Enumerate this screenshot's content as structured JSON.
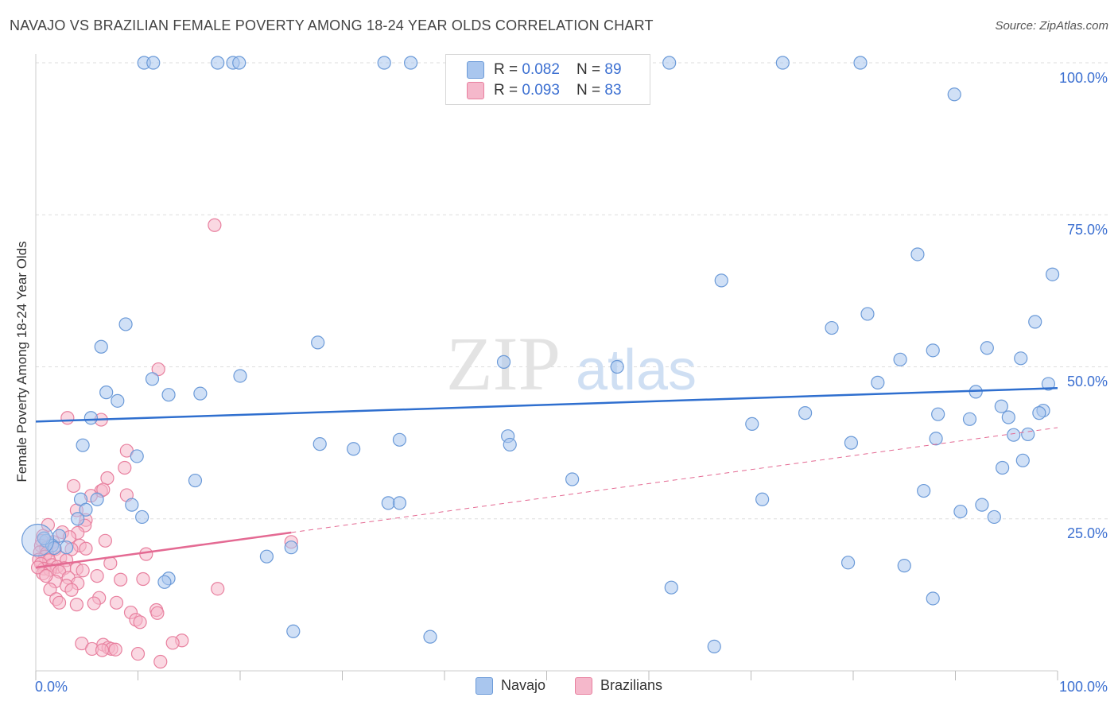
{
  "title": "NAVAJO VS BRAZILIAN FEMALE POVERTY AMONG 18-24 YEAR OLDS CORRELATION CHART",
  "source": "Source: ZipAtlas.com",
  "watermark": {
    "zip": "ZIP",
    "atlas": "atlas"
  },
  "legend": {
    "navajo": {
      "r_label": "R = ",
      "r_value": "0.082",
      "n_label": "N = ",
      "n_value": "89"
    },
    "brazilians": {
      "r_label": "R = ",
      "r_value": "0.093",
      "n_label": "N = ",
      "n_value": "83"
    }
  },
  "colors": {
    "navajo_fill": "#a9c6ee",
    "navajo_stroke": "#6b9ad8",
    "navajo_line": "#2f6fcf",
    "brazil_fill": "#f5b8cb",
    "brazil_stroke": "#e8809f",
    "brazil_line": "#e46a93",
    "grid": "#dddddd",
    "axis_text": "#3b6fd1"
  },
  "chart_data": {
    "type": "scatter",
    "title": "NAVAJO VS BRAZILIAN FEMALE POVERTY AMONG 18-24 YEAR OLDS CORRELATION CHART",
    "xlabel": "",
    "ylabel": "Female Poverty Among 18-24 Year Olds",
    "xlim": [
      0,
      100
    ],
    "ylim": [
      0,
      100
    ],
    "x_tick_labels": [
      "0.0%",
      "100.0%"
    ],
    "y_tick_labels": [
      "25.0%",
      "50.0%",
      "75.0%",
      "100.0%"
    ],
    "y_ticks": [
      25,
      50,
      75,
      100
    ],
    "grid": true,
    "legend_position": "top-center",
    "series": [
      {
        "name": "Navajo",
        "trend": {
          "x": [
            0,
            100
          ],
          "y": [
            41,
            46.5
          ],
          "style": "solid"
        },
        "points": [
          [
            10.6,
            100
          ],
          [
            11.5,
            100
          ],
          [
            17.8,
            100
          ],
          [
            19.3,
            100
          ],
          [
            19.9,
            100
          ],
          [
            34.1,
            100
          ],
          [
            36.7,
            100
          ],
          [
            62.0,
            100
          ],
          [
            73.1,
            100
          ],
          [
            80.7,
            100
          ],
          [
            89.9,
            94.8
          ],
          [
            86.3,
            68.5
          ],
          [
            67.1,
            64.2
          ],
          [
            99.5,
            65.2
          ],
          [
            8.8,
            57.0
          ],
          [
            6.4,
            53.3
          ],
          [
            27.6,
            54.0
          ],
          [
            81.4,
            58.7
          ],
          [
            77.9,
            56.4
          ],
          [
            97.8,
            57.4
          ],
          [
            93.1,
            53.1
          ],
          [
            87.8,
            52.7
          ],
          [
            84.6,
            51.2
          ],
          [
            96.4,
            51.4
          ],
          [
            45.8,
            50.8
          ],
          [
            56.9,
            50.0
          ],
          [
            11.4,
            48.0
          ],
          [
            20.0,
            48.5
          ],
          [
            82.4,
            47.4
          ],
          [
            99.1,
            47.2
          ],
          [
            6.9,
            45.8
          ],
          [
            8.0,
            44.4
          ],
          [
            13.0,
            45.4
          ],
          [
            16.1,
            45.6
          ],
          [
            92.0,
            45.9
          ],
          [
            94.5,
            43.5
          ],
          [
            98.6,
            42.8
          ],
          [
            75.3,
            42.4
          ],
          [
            95.2,
            41.7
          ],
          [
            88.3,
            42.2
          ],
          [
            91.4,
            41.4
          ],
          [
            98.2,
            42.4
          ],
          [
            5.4,
            41.6
          ],
          [
            70.1,
            40.6
          ],
          [
            46.2,
            38.6
          ],
          [
            35.6,
            38.0
          ],
          [
            97.1,
            38.9
          ],
          [
            95.7,
            38.8
          ],
          [
            88.1,
            38.2
          ],
          [
            79.8,
            37.5
          ],
          [
            27.8,
            37.3
          ],
          [
            4.6,
            37.1
          ],
          [
            9.9,
            35.3
          ],
          [
            31.1,
            36.5
          ],
          [
            46.4,
            37.2
          ],
          [
            96.6,
            34.6
          ],
          [
            94.6,
            33.4
          ],
          [
            15.6,
            31.3
          ],
          [
            52.5,
            31.5
          ],
          [
            86.9,
            29.6
          ],
          [
            4.4,
            28.2
          ],
          [
            6.0,
            28.2
          ],
          [
            71.1,
            28.2
          ],
          [
            34.5,
            27.6
          ],
          [
            35.6,
            27.6
          ],
          [
            9.4,
            27.3
          ],
          [
            92.6,
            27.3
          ],
          [
            4.9,
            26.5
          ],
          [
            90.5,
            26.2
          ],
          [
            10.4,
            25.3
          ],
          [
            93.8,
            25.3
          ],
          [
            4.1,
            25.0
          ],
          [
            1.0,
            21.4
          ],
          [
            2.3,
            22.2
          ],
          [
            1.6,
            20.6
          ],
          [
            1.8,
            20.2
          ],
          [
            3.0,
            20.3
          ],
          [
            0.8,
            21.8
          ],
          [
            25.0,
            20.3
          ],
          [
            22.6,
            18.8
          ],
          [
            62.2,
            13.7
          ],
          [
            79.5,
            17.8
          ],
          [
            85.0,
            17.3
          ],
          [
            13.0,
            15.2
          ],
          [
            12.6,
            14.6
          ],
          [
            87.8,
            11.9
          ],
          [
            25.2,
            6.5
          ],
          [
            38.6,
            5.6
          ],
          [
            66.4,
            4.0
          ]
        ]
      },
      {
        "name": "Brazilians",
        "trend": {
          "x": [
            0,
            100
          ],
          "y": [
            17.0,
            40.0
          ],
          "solid_until_x": 25
        },
        "points": [
          [
            17.5,
            73.3
          ],
          [
            12.0,
            49.6
          ],
          [
            3.1,
            41.6
          ],
          [
            6.4,
            41.3
          ],
          [
            8.9,
            36.2
          ],
          [
            8.7,
            33.4
          ],
          [
            7.0,
            31.7
          ],
          [
            3.7,
            30.4
          ],
          [
            6.4,
            29.6
          ],
          [
            6.6,
            29.8
          ],
          [
            5.4,
            28.8
          ],
          [
            8.9,
            28.9
          ],
          [
            4.0,
            26.4
          ],
          [
            4.9,
            24.8
          ],
          [
            1.2,
            24.0
          ],
          [
            4.8,
            23.9
          ],
          [
            2.6,
            22.8
          ],
          [
            4.1,
            22.7
          ],
          [
            0.7,
            22.2
          ],
          [
            3.3,
            22.0
          ],
          [
            0.6,
            21.4
          ],
          [
            6.8,
            21.4
          ],
          [
            1.7,
            21.2
          ],
          [
            0.5,
            20.6
          ],
          [
            4.3,
            20.6
          ],
          [
            1.0,
            20.2
          ],
          [
            1.9,
            20.0
          ],
          [
            3.5,
            20.0
          ],
          [
            4.9,
            20.1
          ],
          [
            0.4,
            19.5
          ],
          [
            1.1,
            19.4
          ],
          [
            10.8,
            19.2
          ],
          [
            0.9,
            18.8
          ],
          [
            2.4,
            18.6
          ],
          [
            0.3,
            18.3
          ],
          [
            1.3,
            18.2
          ],
          [
            3.0,
            18.2
          ],
          [
            7.3,
            17.7
          ],
          [
            0.5,
            17.6
          ],
          [
            1.6,
            17.4
          ],
          [
            2.1,
            17.1
          ],
          [
            2.8,
            16.9
          ],
          [
            0.8,
            16.8
          ],
          [
            1.4,
            16.6
          ],
          [
            4.0,
            16.8
          ],
          [
            2.3,
            16.3
          ],
          [
            0.7,
            16.0
          ],
          [
            6.0,
            15.6
          ],
          [
            3.2,
            15.3
          ],
          [
            8.3,
            15.0
          ],
          [
            10.5,
            15.1
          ],
          [
            1.9,
            14.7
          ],
          [
            4.1,
            14.4
          ],
          [
            3.0,
            14.0
          ],
          [
            17.8,
            13.5
          ],
          [
            1.4,
            13.4
          ],
          [
            3.5,
            13.3
          ],
          [
            6.2,
            12.0
          ],
          [
            2.0,
            11.8
          ],
          [
            2.3,
            11.2
          ],
          [
            5.7,
            11.1
          ],
          [
            7.9,
            11.2
          ],
          [
            4.0,
            10.9
          ],
          [
            11.8,
            10.0
          ],
          [
            9.3,
            9.6
          ],
          [
            11.9,
            9.5
          ],
          [
            9.8,
            8.4
          ],
          [
            10.2,
            8.0
          ],
          [
            4.5,
            4.5
          ],
          [
            6.6,
            4.3
          ],
          [
            14.3,
            5.0
          ],
          [
            13.4,
            4.6
          ],
          [
            7.1,
            3.8
          ],
          [
            7.4,
            3.6
          ],
          [
            5.5,
            3.6
          ],
          [
            7.8,
            3.5
          ],
          [
            6.5,
            3.4
          ],
          [
            10.0,
            2.8
          ],
          [
            12.2,
            1.5
          ],
          [
            25.0,
            21.2
          ],
          [
            0.2,
            17.0
          ],
          [
            1.0,
            15.6
          ],
          [
            4.6,
            16.5
          ]
        ]
      }
    ]
  },
  "axis_labels": {
    "x_left": "0.0%",
    "x_right": "100.0%",
    "y_25": "25.0%",
    "y_50": "50.0%",
    "y_75": "75.0%",
    "y_100": "100.0%"
  },
  "bottom_legend": {
    "navajo": "Navajo",
    "brazilians": "Brazilians"
  }
}
